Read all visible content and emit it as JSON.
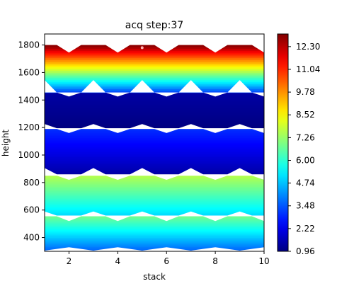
{
  "chart_data": {
    "type": "contour",
    "title": "acq step:37",
    "xlabel": "stack",
    "ylabel": "height",
    "xlim": [
      1,
      10
    ],
    "ylim": [
      300,
      1880
    ],
    "xticks": [
      2,
      4,
      6,
      8,
      10
    ],
    "yticks": [
      400,
      600,
      800,
      1000,
      1200,
      1400,
      1600,
      1800
    ],
    "colormap": "jet",
    "colorbar": {
      "min": 0.96,
      "max": 13.0,
      "ticks": [
        "0.96",
        "2.22",
        "3.48",
        "4.74",
        "6.00",
        "7.26",
        "8.52",
        "9.78",
        "11.04",
        "12.30"
      ]
    },
    "bands": [
      {
        "y_low": 305,
        "y_high": 555,
        "v_low": 3.6,
        "v_high": 6.8,
        "notch_low": 330,
        "notch_high": 520
      },
      {
        "y_low": 560,
        "y_high": 850,
        "v_low": 5.0,
        "v_high": 7.6,
        "notch_low": 590,
        "notch_high": 820
      },
      {
        "y_low": 860,
        "y_high": 1190,
        "v_low": 1.4,
        "v_high": 3.0,
        "notch_low": 905,
        "notch_high": 1160
      },
      {
        "y_low": 1195,
        "y_high": 1455,
        "v_low": 0.96,
        "v_high": 1.4,
        "notch_low": 1225,
        "notch_high": 1425
      },
      {
        "y_low": 1455,
        "y_high": 1800,
        "v_low": 3.2,
        "v_high": 13.0,
        "notch_low": 1545,
        "notch_high": 1745
      }
    ],
    "point_marker": {
      "x": 5,
      "y": 1780
    }
  }
}
